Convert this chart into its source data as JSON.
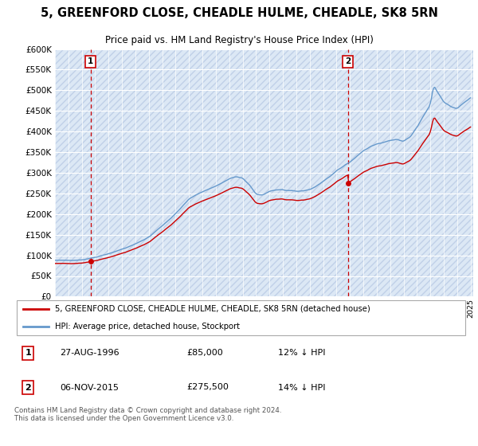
{
  "title": "5, GREENFORD CLOSE, CHEADLE HULME, CHEADLE, SK8 5RN",
  "subtitle": "Price paid vs. HM Land Registry's House Price Index (HPI)",
  "legend_line1": "5, GREENFORD CLOSE, CHEADLE HULME, CHEADLE, SK8 5RN (detached house)",
  "legend_line2": "HPI: Average price, detached house, Stockport",
  "point1_label": "1",
  "point1_date": "27-AUG-1996",
  "point1_price": "£85,000",
  "point1_hpi": "12% ↓ HPI",
  "point1_year": 1996.65,
  "point1_value": 85000,
  "point2_label": "2",
  "point2_date": "06-NOV-2015",
  "point2_price": "£275,500",
  "point2_hpi": "14% ↓ HPI",
  "point2_year": 2015.85,
  "point2_value": 275500,
  "copyright": "Contains HM Land Registry data © Crown copyright and database right 2024.\nThis data is licensed under the Open Government Licence v3.0.",
  "ylim": [
    0,
    600000
  ],
  "yticks": [
    0,
    50000,
    100000,
    150000,
    200000,
    250000,
    300000,
    350000,
    400000,
    450000,
    500000,
    550000,
    600000
  ],
  "background_color": "#ffffff",
  "plot_bg_color": "#dce8f5",
  "grid_color": "#ffffff",
  "hpi_color": "#6699cc",
  "price_color": "#cc0000",
  "annotation_color": "#cc0000",
  "hatch_color": "#c0d0e8"
}
